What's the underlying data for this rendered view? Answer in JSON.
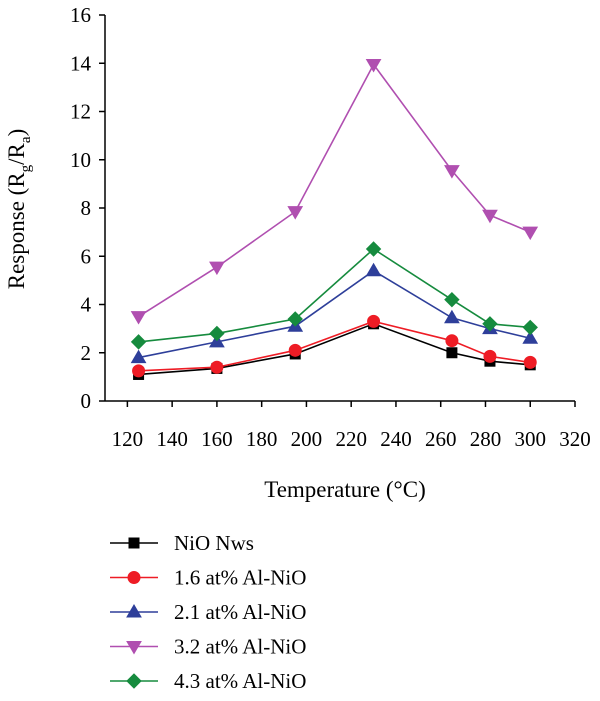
{
  "chart_data": {
    "type": "line",
    "xlabel": "Temperature (°C)",
    "ylabel": {
      "prefix": "Response (R",
      "sub1": "g",
      "mid": "/R",
      "sub2": "a",
      "suffix": ")"
    },
    "xlim": [
      110,
      320
    ],
    "ylim": [
      0,
      16
    ],
    "xticks": [
      120,
      140,
      160,
      180,
      200,
      220,
      240,
      260,
      280,
      300,
      320
    ],
    "yticks": [
      0,
      2,
      4,
      6,
      8,
      10,
      12,
      14,
      16
    ],
    "legend_position": "bottom",
    "grid": false,
    "x": [
      125,
      160,
      195,
      230,
      265,
      282,
      300
    ],
    "series": [
      {
        "name": "NiO Nws",
        "marker": "square",
        "color": "#000000",
        "values": [
          1.1,
          1.35,
          1.95,
          3.2,
          2.0,
          1.65,
          1.5
        ]
      },
      {
        "name": "1.6 at% Al-NiO",
        "marker": "circle",
        "color": "#ee1c25",
        "values": [
          1.25,
          1.4,
          2.1,
          3.3,
          2.5,
          1.85,
          1.6
        ]
      },
      {
        "name": "2.1 at% Al-NiO",
        "marker": "triangle-up",
        "color": "#2e3f9a",
        "values": [
          1.8,
          2.45,
          3.1,
          5.4,
          3.45,
          3.0,
          2.6
        ]
      },
      {
        "name": "3.2 at% Al-NiO",
        "marker": "triangle-down",
        "color": "#b04fb0",
        "values": [
          3.5,
          5.55,
          7.85,
          13.95,
          9.55,
          7.7,
          7.0
        ]
      },
      {
        "name": "4.3 at% Al-NiO",
        "marker": "diamond",
        "color": "#168b3e",
        "values": [
          2.45,
          2.8,
          3.4,
          6.3,
          4.2,
          3.2,
          3.05
        ]
      }
    ]
  }
}
